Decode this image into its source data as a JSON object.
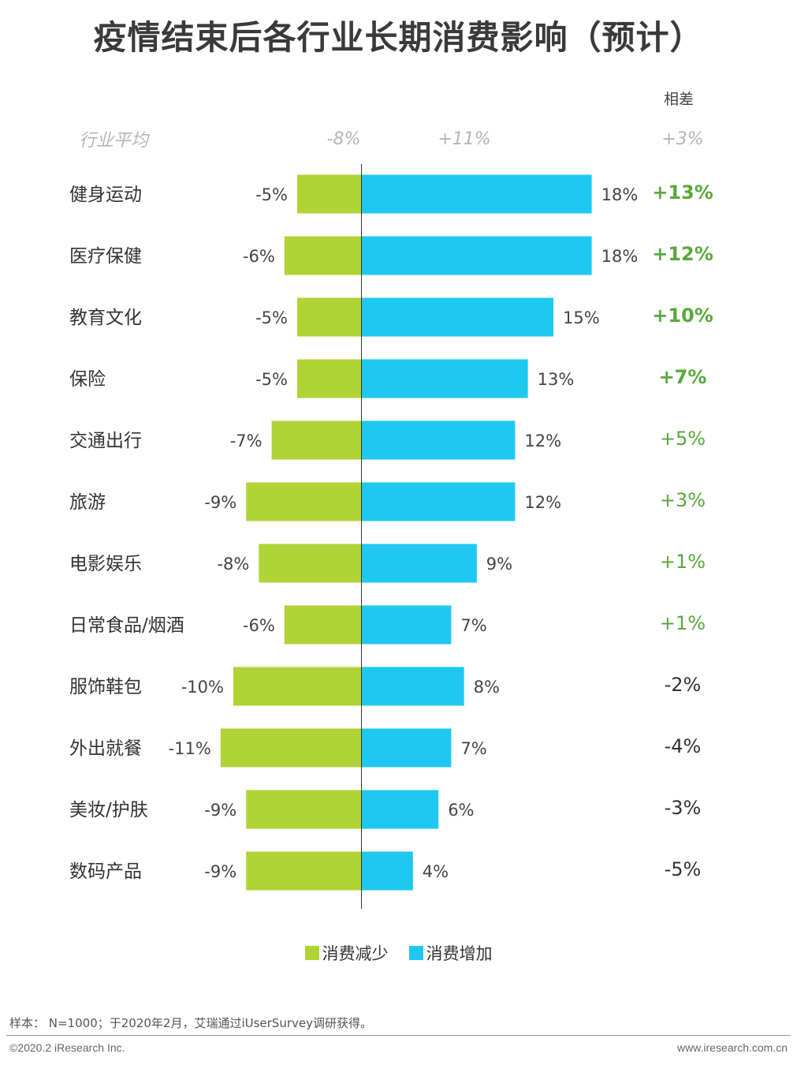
{
  "title": "疫情结束后各行业长期消费影响（预计）",
  "header": {
    "avg_label": "行业平均",
    "avg_decrease": "-8%",
    "avg_increase": "+11%",
    "diff_header": "相差",
    "avg_diff": "+3%"
  },
  "legend": {
    "decrease": "消费减少",
    "increase": "消费增加"
  },
  "footer": {
    "note": "样本： N=1000；于2020年2月，艾瑞通过iUserSurvey调研获得。",
    "copyright": "©2020.2 iResearch Inc.",
    "website": "www.iresearch.com.cn"
  },
  "colors": {
    "decrease": "#b0d335",
    "increase": "#1ec8f0",
    "diff_positive": "#5aa83c",
    "diff_negative": "#333333",
    "header_muted": "#b5b5b5"
  },
  "chart_data": {
    "type": "bar",
    "orientation": "horizontal-diverging",
    "categories": [
      "健身运动",
      "医疗保健",
      "教育文化",
      "保险",
      "交通出行",
      "旅游",
      "电影娱乐",
      "日常食品/烟酒",
      "服饰鞋包",
      "外出就餐",
      "美妆/护肤",
      "数码产品"
    ],
    "series": [
      {
        "name": "消费减少",
        "values": [
          -5,
          -6,
          -5,
          -5,
          -7,
          -9,
          -8,
          -6,
          -10,
          -11,
          -9,
          -9
        ],
        "labels": [
          "-5%",
          "-6%",
          "-5%",
          "-5%",
          "-7%",
          "-9%",
          "-8%",
          "-6%",
          "-10%",
          "-11%",
          "-9%",
          "-9%"
        ]
      },
      {
        "name": "消费增加",
        "values": [
          18,
          18,
          15,
          13,
          12,
          12,
          9,
          7,
          8,
          7,
          6,
          4
        ],
        "labels": [
          "18%",
          "18%",
          "15%",
          "13%",
          "12%",
          "12%",
          "9%",
          "7%",
          "8%",
          "7%",
          "6%",
          "4%"
        ]
      }
    ],
    "difference": {
      "values": [
        13,
        12,
        10,
        7,
        5,
        3,
        1,
        1,
        -2,
        -4,
        -3,
        -5
      ],
      "labels": [
        "+13%",
        "+12%",
        "+10%",
        "+7%",
        "+5%",
        "+3%",
        "+1%",
        "+1%",
        "-2%",
        "-4%",
        "-3%",
        "-5%"
      ],
      "bold": [
        true,
        true,
        true,
        true,
        false,
        false,
        false,
        false,
        false,
        false,
        false,
        false
      ]
    }
  }
}
